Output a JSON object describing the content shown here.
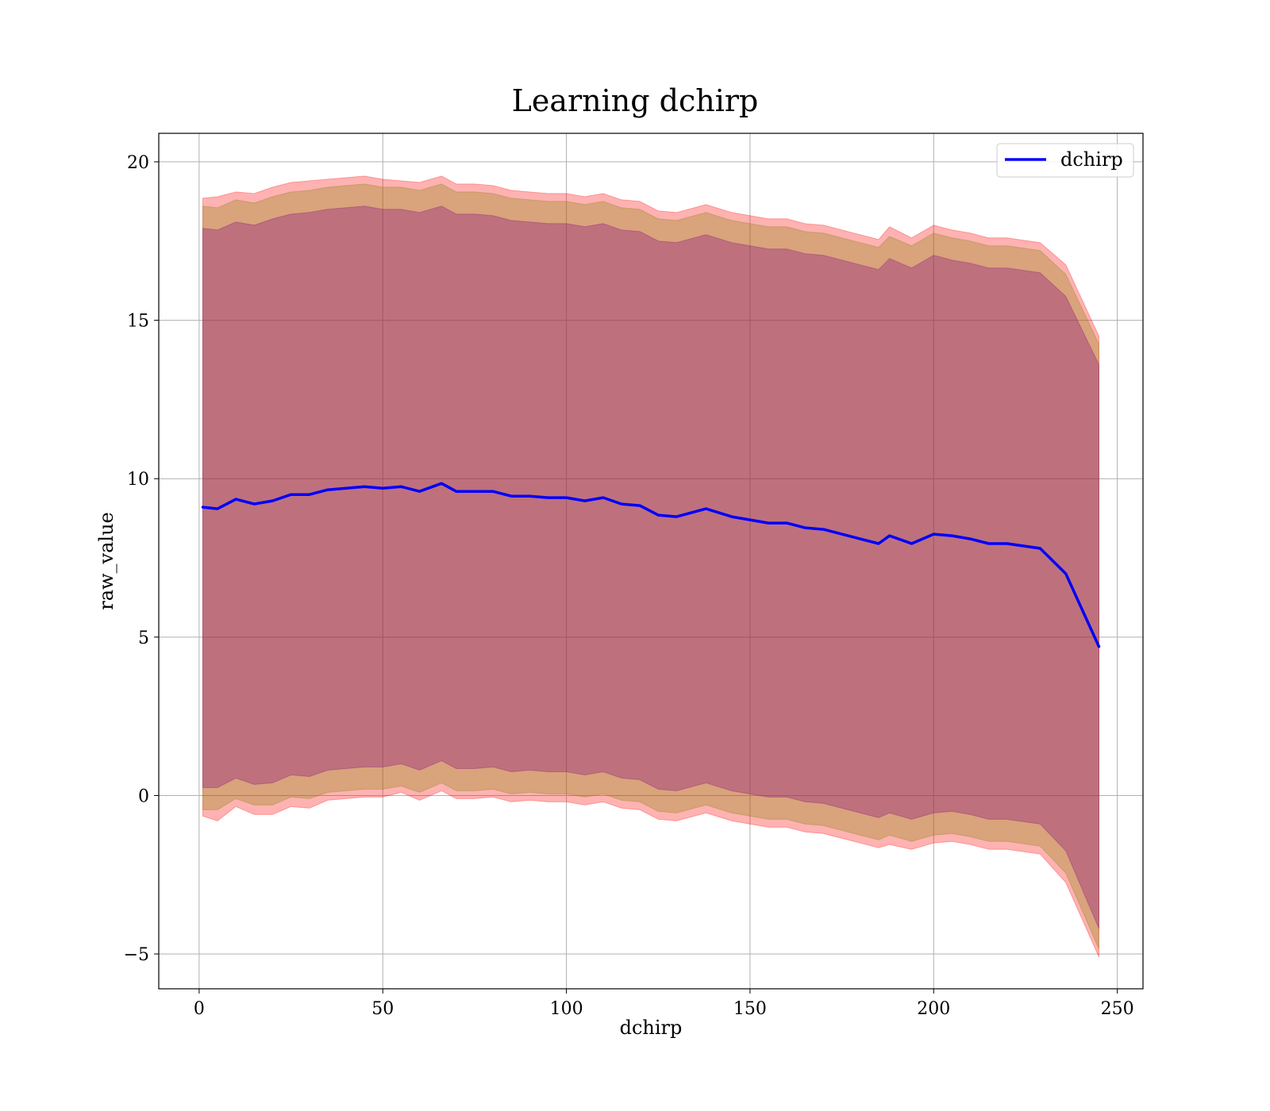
{
  "chart_data": {
    "type": "line",
    "title": "Learning dchirp",
    "xlabel": "dchirp",
    "ylabel": "raw_value",
    "xlim": [
      -11,
      257
    ],
    "ylim": [
      -6.1,
      20.9
    ],
    "xticks": [
      0,
      50,
      100,
      150,
      200,
      250
    ],
    "yticks": [
      -5,
      0,
      5,
      10,
      15,
      20
    ],
    "xtick_labels": [
      "0",
      "50",
      "100",
      "150",
      "200",
      "250"
    ],
    "ytick_labels": [
      "−5",
      "0",
      "5",
      "10",
      "15",
      "20"
    ],
    "grid": true,
    "legend_position": "top-right",
    "series": [
      {
        "name": "dchirp",
        "color": "#0000ff",
        "x": [
          1,
          5,
          10,
          15,
          20,
          25,
          30,
          35,
          40,
          45,
          50,
          55,
          60,
          66,
          70,
          75,
          80,
          85,
          90,
          95,
          100,
          105,
          110,
          115,
          120,
          125,
          130,
          138,
          145,
          150,
          155,
          160,
          165,
          170,
          175,
          180,
          185,
          188,
          194,
          200,
          205,
          210,
          215,
          220,
          229,
          236,
          245
        ],
        "y": [
          9.1,
          9.05,
          9.35,
          9.2,
          9.3,
          9.5,
          9.5,
          9.65,
          9.7,
          9.75,
          9.7,
          9.75,
          9.6,
          9.85,
          9.6,
          9.6,
          9.6,
          9.45,
          9.45,
          9.4,
          9.4,
          9.3,
          9.4,
          9.2,
          9.15,
          8.85,
          8.8,
          9.05,
          8.8,
          8.7,
          8.6,
          8.6,
          8.45,
          8.4,
          8.25,
          8.1,
          7.95,
          8.2,
          7.95,
          8.25,
          8.2,
          8.1,
          7.95,
          7.95,
          7.8,
          7.0,
          4.7
        ]
      }
    ],
    "bands": [
      {
        "color": "#ff0000",
        "opacity": 0.3,
        "upper": [
          18.85,
          18.9,
          19.05,
          19.0,
          19.2,
          19.35,
          19.4,
          19.45,
          19.5,
          19.55,
          19.45,
          19.4,
          19.35,
          19.55,
          19.3,
          19.3,
          19.25,
          19.1,
          19.05,
          19.0,
          19.0,
          18.9,
          19.0,
          18.8,
          18.75,
          18.45,
          18.4,
          18.65,
          18.4,
          18.3,
          18.2,
          18.2,
          18.05,
          18.0,
          17.85,
          17.7,
          17.55,
          17.95,
          17.6,
          18.0,
          17.85,
          17.75,
          17.6,
          17.6,
          17.45,
          16.75,
          14.5
        ],
        "lower": [
          -0.65,
          -0.8,
          -0.35,
          -0.6,
          -0.6,
          -0.35,
          -0.4,
          -0.15,
          -0.1,
          -0.05,
          -0.05,
          0.1,
          -0.15,
          0.15,
          -0.1,
          -0.1,
          -0.05,
          -0.2,
          -0.15,
          -0.2,
          -0.2,
          -0.3,
          -0.2,
          -0.4,
          -0.45,
          -0.75,
          -0.8,
          -0.55,
          -0.8,
          -0.9,
          -1.0,
          -1.0,
          -1.15,
          -1.2,
          -1.35,
          -1.5,
          -1.65,
          -1.55,
          -1.7,
          -1.5,
          -1.45,
          -1.55,
          -1.7,
          -1.7,
          -1.85,
          -2.75,
          -5.1
        ]
      },
      {
        "color": "#808000",
        "opacity": 0.3,
        "upper": [
          18.6,
          18.55,
          18.8,
          18.7,
          18.9,
          19.05,
          19.1,
          19.2,
          19.25,
          19.3,
          19.2,
          19.2,
          19.1,
          19.3,
          19.05,
          19.05,
          19.0,
          18.85,
          18.8,
          18.75,
          18.75,
          18.65,
          18.75,
          18.55,
          18.5,
          18.2,
          18.15,
          18.4,
          18.15,
          18.05,
          17.95,
          17.95,
          17.8,
          17.75,
          17.6,
          17.45,
          17.3,
          17.65,
          17.35,
          17.75,
          17.6,
          17.5,
          17.35,
          17.35,
          17.2,
          16.45,
          14.25
        ],
        "lower": [
          -0.45,
          -0.45,
          -0.1,
          -0.3,
          -0.3,
          -0.05,
          -0.1,
          0.1,
          0.15,
          0.2,
          0.2,
          0.3,
          0.1,
          0.4,
          0.15,
          0.15,
          0.2,
          0.05,
          0.1,
          0.05,
          0.05,
          -0.05,
          0.05,
          -0.15,
          -0.2,
          -0.5,
          -0.55,
          -0.3,
          -0.55,
          -0.65,
          -0.75,
          -0.75,
          -0.9,
          -0.95,
          -1.1,
          -1.25,
          -1.4,
          -1.25,
          -1.45,
          -1.25,
          -1.2,
          -1.3,
          -1.45,
          -1.45,
          -1.6,
          -2.45,
          -4.85
        ]
      },
      {
        "color": "#800080",
        "opacity": 0.3,
        "upper": [
          17.9,
          17.85,
          18.1,
          18.0,
          18.2,
          18.35,
          18.4,
          18.5,
          18.55,
          18.6,
          18.5,
          18.5,
          18.4,
          18.6,
          18.35,
          18.35,
          18.3,
          18.15,
          18.1,
          18.05,
          18.05,
          17.95,
          18.05,
          17.85,
          17.8,
          17.5,
          17.45,
          17.7,
          17.45,
          17.35,
          17.25,
          17.25,
          17.1,
          17.05,
          16.9,
          16.75,
          16.6,
          16.95,
          16.65,
          17.05,
          16.9,
          16.8,
          16.65,
          16.65,
          16.5,
          15.75,
          13.6
        ],
        "lower": [
          0.25,
          0.25,
          0.55,
          0.35,
          0.4,
          0.65,
          0.6,
          0.8,
          0.85,
          0.9,
          0.9,
          1.0,
          0.8,
          1.1,
          0.85,
          0.85,
          0.9,
          0.75,
          0.8,
          0.75,
          0.75,
          0.65,
          0.75,
          0.55,
          0.5,
          0.2,
          0.15,
          0.4,
          0.15,
          0.05,
          -0.05,
          -0.05,
          -0.2,
          -0.25,
          -0.4,
          -0.55,
          -0.7,
          -0.55,
          -0.75,
          -0.55,
          -0.5,
          -0.6,
          -0.75,
          -0.75,
          -0.9,
          -1.75,
          -4.2
        ]
      }
    ]
  }
}
